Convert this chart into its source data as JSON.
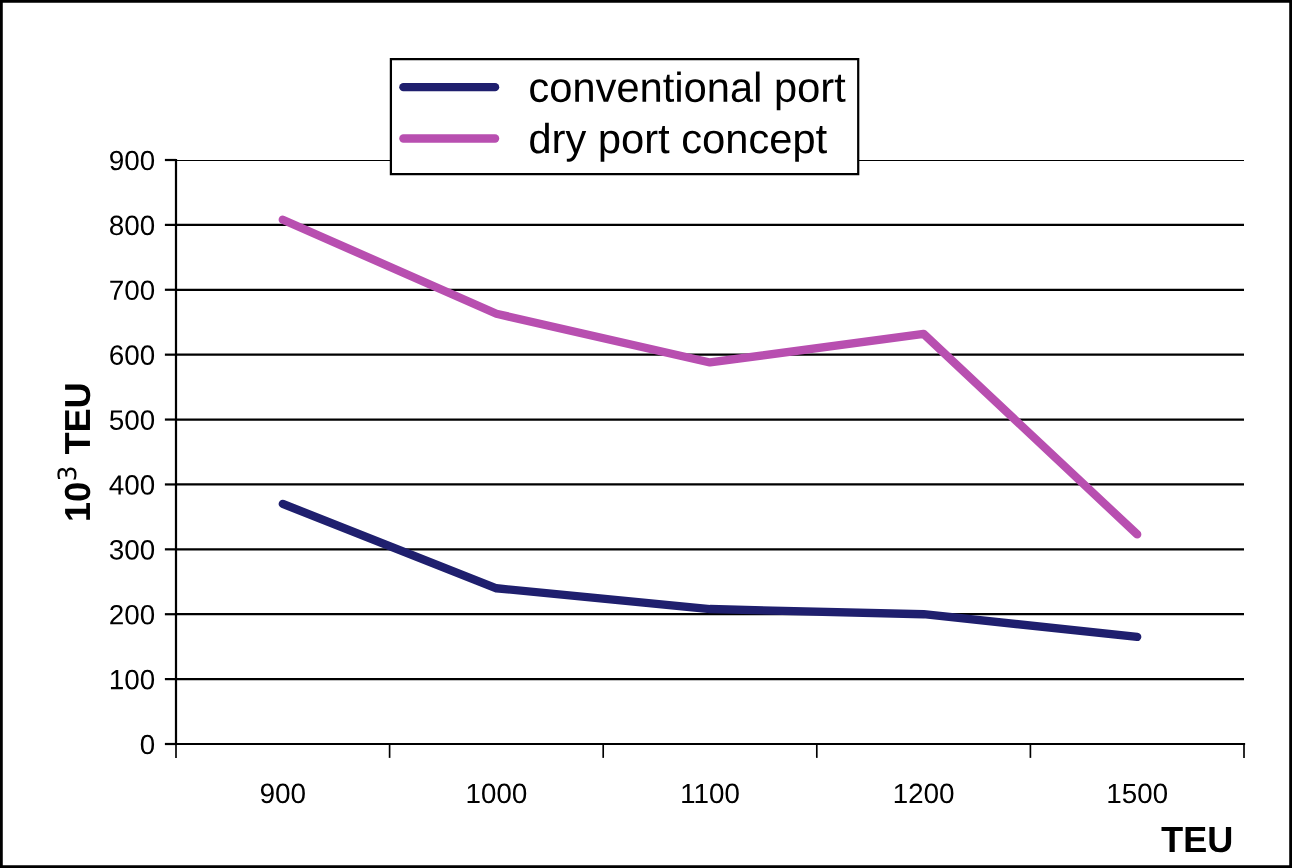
{
  "chart_data": {
    "type": "line",
    "xlabel": "TEU",
    "ylabel": "10$^{3}$ TEU",
    "categories": [
      "900",
      "1000",
      "1100",
      "1200",
      "1500"
    ],
    "series": [
      {
        "name": "conventional port",
        "color": "#1f1f6e",
        "values": [
          370,
          240,
          208,
          200,
          165
        ]
      },
      {
        "name": "dry port concept",
        "color": "#b84fb0",
        "values": [
          808,
          663,
          588,
          632,
          323
        ]
      }
    ],
    "ylim": [
      0,
      900
    ],
    "yticks": [
      0,
      100,
      200,
      300,
      400,
      500,
      600,
      700,
      800,
      900
    ],
    "grid": "y",
    "legend": "top",
    "marker": "none",
    "line_style": "solid"
  }
}
